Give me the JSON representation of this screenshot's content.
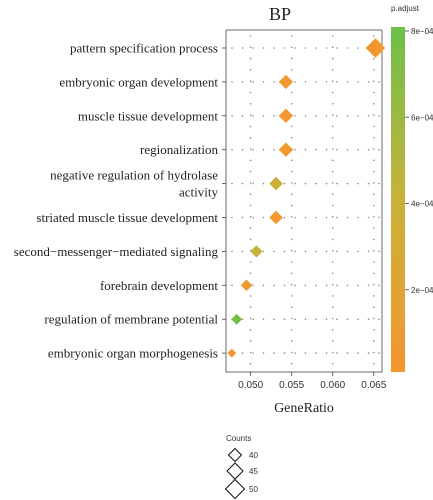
{
  "chart_data": {
    "type": "scatter",
    "title": "BP",
    "xlabel": "GeneRatio",
    "ylabel": "",
    "xlim": [
      0.047,
      0.066
    ],
    "x_ticks": [
      0.05,
      0.055,
      0.06,
      0.065
    ],
    "x_tick_labels": [
      "0.050",
      "0.055",
      "0.060",
      "0.065"
    ],
    "marker": "diamond",
    "grid": "dotted",
    "categories": [
      [
        "pattern specification process"
      ],
      [
        "embryonic organ development"
      ],
      [
        "muscle tissue development"
      ],
      [
        "regionalization"
      ],
      [
        "negative regulation of hydrolase",
        "activity"
      ],
      [
        "striated muscle tissue development"
      ],
      [
        "second−messenger−mediated signaling"
      ],
      [
        "forebrain development"
      ],
      [
        "regulation of membrane potential"
      ],
      [
        "embryonic organ morphogenesis"
      ]
    ],
    "points": [
      {
        "x": 0.0652,
        "count": 54,
        "padjust": 2e-05
      },
      {
        "x": 0.0543,
        "count": 46,
        "padjust": 3e-05
      },
      {
        "x": 0.0543,
        "count": 46,
        "padjust": 3e-05
      },
      {
        "x": 0.0543,
        "count": 46,
        "padjust": 3e-05
      },
      {
        "x": 0.0531,
        "count": 45,
        "padjust": 0.00035
      },
      {
        "x": 0.0531,
        "count": 45,
        "padjust": 3e-05
      },
      {
        "x": 0.0507,
        "count": 43,
        "padjust": 0.0004
      },
      {
        "x": 0.0495,
        "count": 42,
        "padjust": 5e-05
      },
      {
        "x": 0.0483,
        "count": 41,
        "padjust": 0.00076
      },
      {
        "x": 0.0477,
        "count": 38,
        "padjust": 2e-05
      }
    ],
    "colorbar": {
      "title": "p.adjust",
      "range": [
        0.0,
        0.0008
      ],
      "ticks": [
        0.0002,
        0.0004,
        0.0006,
        0.0008
      ],
      "tick_labels": [
        "2e−04",
        "4e−04",
        "6e−04",
        "8e−04"
      ],
      "low_color": "#f4962e",
      "mid_color": "#c9b23a",
      "high_color": "#6cc04a"
    },
    "size_legend": {
      "title": "Counts",
      "values": [
        40,
        45,
        50
      ],
      "labels": [
        "40",
        "45",
        "50"
      ]
    }
  }
}
